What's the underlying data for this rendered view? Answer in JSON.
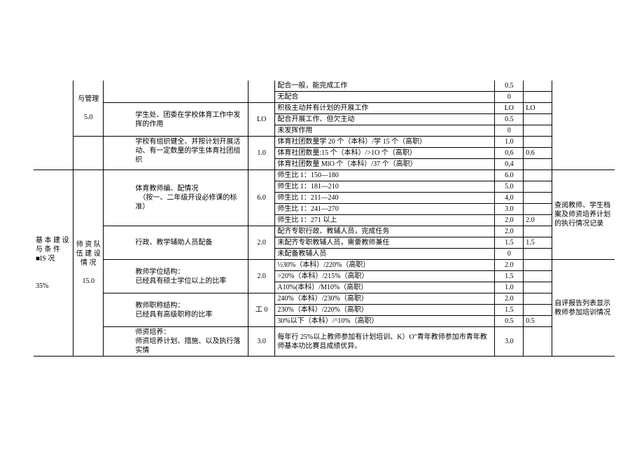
{
  "col1": {
    "main": "基 本 建 设 与 条 件 ■IS 况",
    "pct": "35%"
  },
  "sec_admin": {
    "label": "与管理",
    "score": "5.0",
    "r1a": "",
    "r1b": "配合一般，能完成工作",
    "r1c": "0.5",
    "r2b": "无配合",
    "r2c": "0",
    "item2": "学生处、团委在学校体育工作中发挥的作用",
    "item2s": "LO",
    "r3b": "积极主动并有计划的开展工作",
    "r3c": "LO",
    "r3d": "LO",
    "r4b": "配合开展工作、但欠主动",
    "r4c": "0.5",
    "r5b": "未发挥作用",
    "r5c": "0"
  },
  "sec_club": {
    "item": "学校有组织健全、并按计划开展活动、有一定数量的学生体育社团组织",
    "score": "1.0",
    "r1": "体育社团数量学 20 个（本科）/学 15 个（高职）",
    "r1c": "1.0",
    "r2": "体育社团数量:15 个（本科）/>1O 个（高职）",
    "r2c": "0,6",
    "r2d": "0.6",
    "r3": "体育社团数量 MlO 个（本科）/37 个（高职）",
    "r3c": "0,4"
  },
  "sec_staff": {
    "label": "师 资 队 伍 建 设 情 况",
    "score": "15.0",
    "i1": "体育教师编、配情况\n　（按一、二年级开设必修课的标准）",
    "i1s": "6.0",
    "i1r1": "师生比 1：150—180",
    "i1r1c": "6.0",
    "i1r2": "师生比 1：181—210",
    "i1r2c": "5.0",
    "i1r3": "师生比 1：211—240",
    "i1r3c": "4,0",
    "i1r4": "师生比 1：241—270",
    "i1r4c": "3.0",
    "i1r5": "师生比 1：271 以上",
    "i1r5c": "2.0",
    "i1r5d": "2.0",
    "i2": "行政、教学辅助人员配备",
    "i2s": "2.0",
    "i2r1": "配齐专职行政、教辅人员，完成任务",
    "i2r1c": "2.0",
    "i2r2": "未配齐专职教辅人员，需要教师兼任",
    "i2r2c": "1.5",
    "i2r2d": "1.5",
    "i2r3": "未配备教辅人员",
    "i2r3c": "0",
    "i3": "教师学位结构：\n已经具有硕士学位以上的比率",
    "i3s": "2.0",
    "i3r1": "½30%（本科）/220%（高职）",
    "i3r1c": "2.0",
    "i3r2": ">20%（本科）/215%（高职）",
    "i3r2c": "1.5",
    "i3r3": "A10%(本科）/M10%（高职）",
    "i3r3c": "1.0",
    "i4": "教师职称结构：\n已经具有高级职称的比率",
    "i4s": "工 0",
    "i4r1": "240%（本科）/230%（高职）",
    "i4r1c": "2.0",
    "i4r2": "230%（本科）/220%（高职）",
    "i4r2c": "1.5",
    "i4r3": "30%以下（本科）/^10%（高职）",
    "i4r3c": "0.5",
    "i4r3d": "0.5",
    "i5": "师资培养：\n师资培养计划、措施、以及执行落实情",
    "i5s": "3.0",
    "i5r1": "每年行 25%以上教师参加有计划培训、K）O\"青年教师参加市青年教师基本功比赛且成绩优异。",
    "i5r1c": "3.0"
  },
  "notes": {
    "n1": "查阅教师、学生档案及师资培养计划的执行情况记录",
    "n2": "自评报告列表显示教师参加培训情况"
  }
}
